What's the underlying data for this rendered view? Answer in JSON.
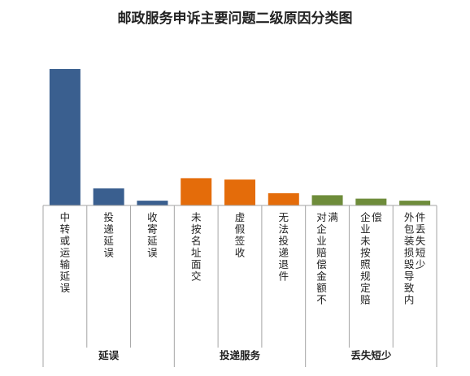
{
  "chart_data": {
    "type": "bar",
    "title": "邮政服务申诉主要问题二级原因分类图",
    "xlabel": "",
    "ylabel": "",
    "grid": false,
    "legend": "none",
    "ylim": [
      0,
      100
    ],
    "categories": [
      "中转或运输延误",
      "投递延误",
      "收寄延误",
      "未按名址面交",
      "虚假签收",
      "无法投递退件",
      "对企业赔偿金额不满",
      "企业未按照规定赔偿",
      "外包装损毁导致内件丢失短少"
    ],
    "values": [
      100,
      12.5,
      3.5,
      20,
      19,
      9,
      7.5,
      5,
      3.5
    ],
    "groups": [
      {
        "label": "延误",
        "start": 0,
        "end": 2,
        "color": "#3A5F8F"
      },
      {
        "label": "投递服务",
        "start": 3,
        "end": 5,
        "color": "#E46C0A"
      },
      {
        "label": "丢失短少",
        "start": 6,
        "end": 8,
        "color": "#6E8C3A"
      }
    ]
  }
}
